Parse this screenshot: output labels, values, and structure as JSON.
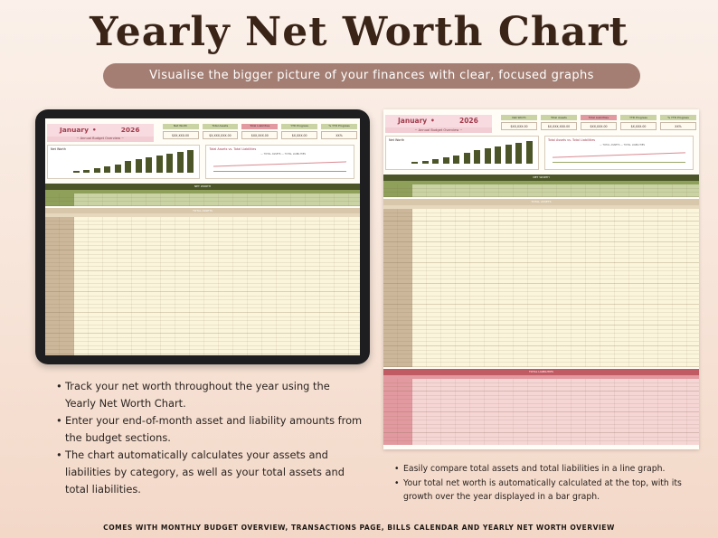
{
  "title": "Yearly Net Worth Chart",
  "subtitle": "Visualise the bigger picture of your finances with clear, focused graphs",
  "sheet": {
    "month": "January",
    "year": "2026",
    "overview_label": "~ Annual Budget Overview ~",
    "kpis": [
      {
        "label": "Net Worth",
        "value": "$XX,XXX.00"
      },
      {
        "label": "Total Assets",
        "value": "$X,XXX,XXX.00"
      },
      {
        "label": "Total Liabilities",
        "value": "$XX,XXX.00"
      },
      {
        "label": "YTD Progress",
        "value": "$X,XXX.00"
      },
      {
        "label": "% YTD Progress",
        "value": "XX%"
      }
    ],
    "bar_chart_title": "Net Worth",
    "line_chart_title": "Total Assets vs. Total Liabilities",
    "legend": [
      "TOTAL ASSETS",
      "TOTAL LIABILITIES"
    ],
    "net_worth_section": "NET WORTH",
    "total_assets_section": "TOTAL ASSETS",
    "total_liabilities_section": "TOTAL LIABILITIES",
    "months": [
      "JANUARY",
      "FEBRUARY",
      "MARCH",
      "APRIL",
      "MAY",
      "JUNE",
      "JULY",
      "AUGUST",
      "SEPTEMBER",
      "OCTOBER",
      "NOVEMBER",
      "DECEMBER"
    ],
    "bar_levels": [
      0.08,
      0.12,
      0.18,
      0.26,
      0.36,
      0.48,
      0.58,
      0.66,
      0.72,
      0.8,
      0.88,
      0.96
    ],
    "colors": {
      "olive_dark": "#4b5527",
      "olive_mid": "#8fa05b",
      "olive_light": "#c9d3a4",
      "beige": "#d8c7aa",
      "cream": "#fbf5dc",
      "rose_dark": "#c05a63",
      "rose_mid": "#e29aa0",
      "rose_light": "#f6d5d5",
      "brown": "#a47e72"
    }
  },
  "left_bullets": [
    "Track your net worth throughout the year using the Yearly Net Worth Chart.",
    " Enter your end-of-month asset and liability amounts from the budget sections.",
    " The chart automatically calculates your assets and liabilities by category, as well as your total assets and total liabilities."
  ],
  "right_bullets": [
    "Easily compare total assets and total liabilities in a line graph.",
    "Your total net worth is automatically calculated at the top, with its growth over the year displayed in a bar graph."
  ],
  "footer": "COMES WITH MONTHLY BUDGET OVERVIEW, TRANSACTIONS PAGE, BILLS CALENDAR AND YEARLY NET WORTH OVERVIEW"
}
